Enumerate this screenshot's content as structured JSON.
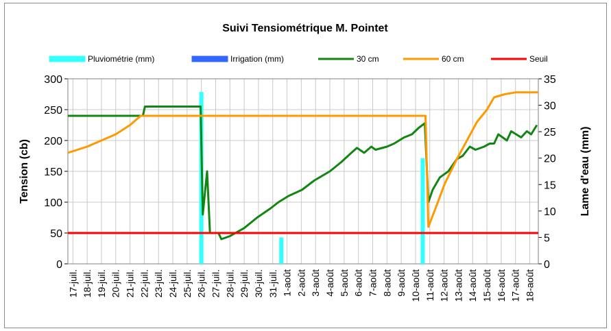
{
  "chart_data": {
    "type": "line",
    "title": "Suivi Tensiométrique M. Pointet",
    "y_label": "Tension (cb)",
    "y2_label": "Lame d'eau (mm)",
    "xlim": [
      -0.35,
      32.6
    ],
    "xticks": [
      {
        "value": 0,
        "label": "17-juil."
      },
      {
        "value": 1,
        "label": "18-juil."
      },
      {
        "value": 2,
        "label": "19-juil."
      },
      {
        "value": 3,
        "label": "20-juil."
      },
      {
        "value": 4,
        "label": "21-juil."
      },
      {
        "value": 5,
        "label": "22-juil."
      },
      {
        "value": 6,
        "label": "23-juil."
      },
      {
        "value": 7,
        "label": "24-juil."
      },
      {
        "value": 8,
        "label": "25-juil."
      },
      {
        "value": 9,
        "label": "26-juil."
      },
      {
        "value": 10,
        "label": "27-juil."
      },
      {
        "value": 11,
        "label": "28-juil."
      },
      {
        "value": 12,
        "label": "29-juil."
      },
      {
        "value": 13,
        "label": "30-juil."
      },
      {
        "value": 14,
        "label": "31-juil."
      },
      {
        "value": 15,
        "label": "1-août"
      },
      {
        "value": 16,
        "label": "2-août"
      },
      {
        "value": 17,
        "label": "3-août"
      },
      {
        "value": 18,
        "label": "4-août"
      },
      {
        "value": 19,
        "label": "5-août"
      },
      {
        "value": 20,
        "label": "6-août"
      },
      {
        "value": 21,
        "label": "7-août"
      },
      {
        "value": 22,
        "label": "8-août"
      },
      {
        "value": 23,
        "label": "9-août"
      },
      {
        "value": 24,
        "label": "10-août"
      },
      {
        "value": 25,
        "label": "11-août"
      },
      {
        "value": 26,
        "label": "12-août"
      },
      {
        "value": 27,
        "label": "13-août"
      },
      {
        "value": 28,
        "label": "14-août"
      },
      {
        "value": 29,
        "label": "15-août"
      },
      {
        "value": 30,
        "label": "16-août"
      },
      {
        "value": 31,
        "label": "17-août"
      },
      {
        "value": 32,
        "label": "18-août"
      }
    ],
    "ylim": [
      0,
      300
    ],
    "yticks": [
      0,
      50,
      100,
      150,
      200,
      250,
      300
    ],
    "y2lim": [
      0,
      35
    ],
    "y2ticks": [
      0,
      5,
      10,
      15,
      20,
      25,
      30,
      35
    ],
    "grid": true,
    "series": [
      {
        "name": "Pluviométrie (mm)",
        "color": "#33ffff",
        "type": "bar",
        "axis": "y2",
        "x": [
          9.0,
          14.6,
          24.5
        ],
        "values": [
          32.5,
          5,
          20
        ]
      },
      {
        "name": "Irrigation (mm)",
        "color": "#3366ff",
        "type": "bar",
        "axis": "y2",
        "x": [],
        "values": []
      },
      {
        "name": "30 cm",
        "color": "#138513",
        "type": "line",
        "x": [
          -0.35,
          4.9,
          5.05,
          8.95,
          9.1,
          9.4,
          9.6,
          10.2,
          10.4,
          11,
          12,
          12.9,
          13.85,
          14.4,
          15.1,
          16.05,
          16.9,
          18,
          18.8,
          19.5,
          19.9,
          20.4,
          20.9,
          21.2,
          22,
          22.5,
          23.2,
          23.75,
          24.2,
          24.65,
          24.9,
          25.2,
          25.7,
          26.3,
          26.9,
          27.3,
          27.8,
          28.2,
          28.8,
          29.2,
          29.5,
          29.8,
          30.4,
          30.7,
          31.4,
          31.8,
          32.1,
          32.5
        ],
        "values": [
          240,
          240,
          255,
          255,
          80,
          150,
          50,
          50,
          40,
          45,
          58,
          75,
          90,
          100,
          110,
          120,
          135,
          150,
          165,
          180,
          188,
          180,
          190,
          185,
          190,
          195,
          205,
          210,
          220,
          228,
          100,
          120,
          140,
          150,
          170,
          175,
          190,
          185,
          190,
          195,
          195,
          210,
          200,
          215,
          205,
          215,
          210,
          225
        ]
      },
      {
        "name": "60 cm",
        "color": "#ff9900",
        "type": "line",
        "x": [
          -0.35,
          1,
          2,
          3,
          4,
          4.75,
          24.7,
          24.9,
          25.4,
          26.05,
          26.9,
          27.6,
          28.3,
          29.0,
          29.5,
          30.25,
          31,
          32.6
        ],
        "values": [
          180,
          190,
          200,
          210,
          225,
          240,
          240,
          60,
          90,
          130,
          170,
          200,
          230,
          250,
          270,
          275,
          278,
          278
        ]
      },
      {
        "name": "Seuil",
        "color": "#ff0000",
        "type": "hline",
        "values": [
          50
        ]
      }
    ]
  }
}
